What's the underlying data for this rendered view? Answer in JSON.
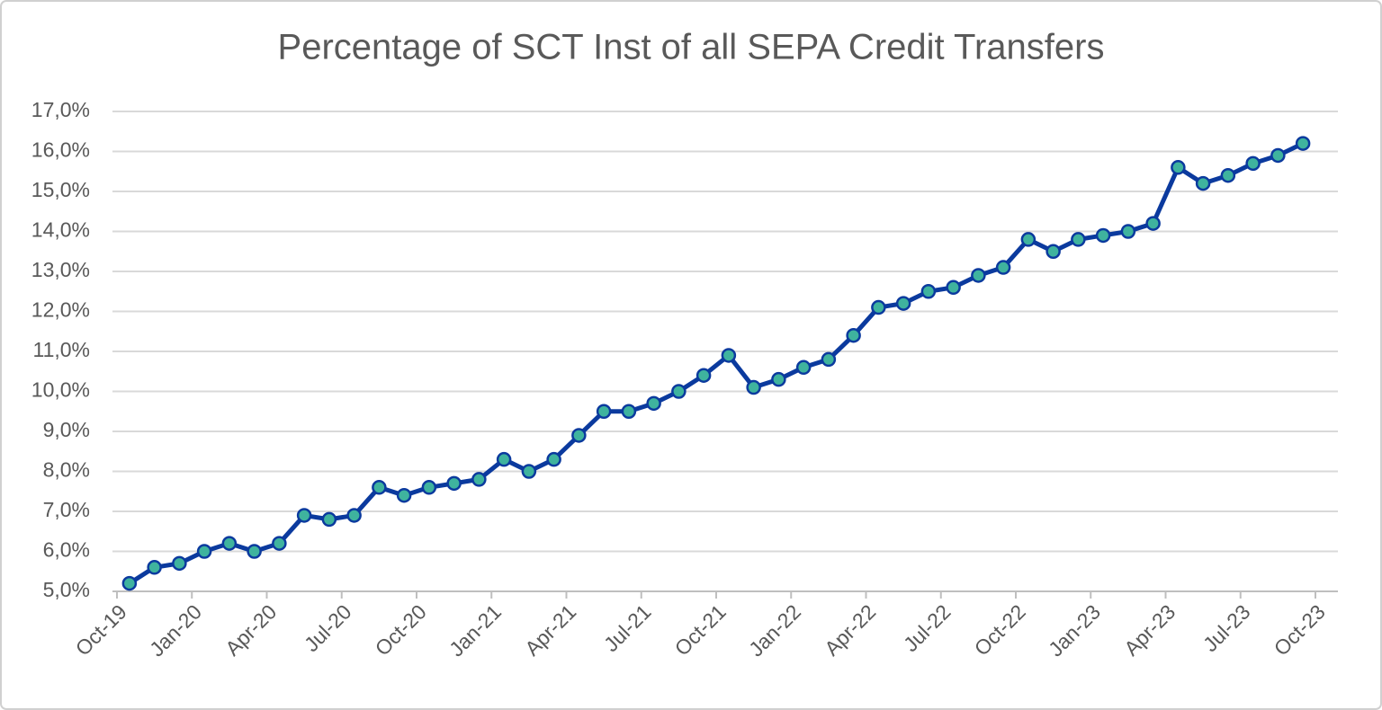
{
  "chart_data": {
    "type": "line",
    "title": "Percentage of SCT Inst of all SEPA Credit Transfers",
    "x": [
      "2019-10",
      "2019-11",
      "2019-12",
      "2020-01",
      "2020-02",
      "2020-03",
      "2020-04",
      "2020-05",
      "2020-06",
      "2020-07",
      "2020-08",
      "2020-09",
      "2020-10",
      "2020-11",
      "2020-12",
      "2021-01",
      "2021-02",
      "2021-03",
      "2021-04",
      "2021-05",
      "2021-06",
      "2021-07",
      "2021-08",
      "2021-09",
      "2021-10",
      "2021-11",
      "2021-12",
      "2022-01",
      "2022-02",
      "2022-03",
      "2022-04",
      "2022-05",
      "2022-06",
      "2022-07",
      "2022-08",
      "2022-09",
      "2022-10",
      "2022-11",
      "2022-12",
      "2023-01",
      "2023-02",
      "2023-03",
      "2023-04",
      "2023-05",
      "2023-06",
      "2023-07",
      "2023-08",
      "2023-09"
    ],
    "series": [
      {
        "color": "#0b3a9e",
        "marker_color": "#3fb39e",
        "values": [
          5.2,
          5.6,
          5.7,
          6.0,
          6.2,
          6.0,
          6.2,
          6.9,
          6.8,
          6.9,
          7.6,
          7.4,
          7.6,
          7.7,
          7.8,
          8.3,
          8.0,
          8.3,
          8.9,
          9.5,
          9.5,
          9.7,
          10.0,
          10.4,
          10.9,
          10.1,
          10.3,
          10.6,
          10.8,
          11.4,
          12.1,
          12.2,
          12.5,
          12.6,
          12.9,
          13.1,
          13.8,
          13.5,
          13.8,
          13.9,
          14.0,
          14.2,
          15.6,
          15.2,
          15.4,
          15.7,
          15.9,
          16.2
        ]
      }
    ],
    "xlim": [
      "2019-10",
      "2023-10"
    ],
    "xticks": [
      {
        "value": "2019-10",
        "label": "Oct-19"
      },
      {
        "value": "2020-01",
        "label": "Jan-20"
      },
      {
        "value": "2020-04",
        "label": "Apr-20"
      },
      {
        "value": "2020-07",
        "label": "Jul-20"
      },
      {
        "value": "2020-10",
        "label": "Oct-20"
      },
      {
        "value": "2021-01",
        "label": "Jan-21"
      },
      {
        "value": "2021-04",
        "label": "Apr-21"
      },
      {
        "value": "2021-07",
        "label": "Jul-21"
      },
      {
        "value": "2021-10",
        "label": "Oct-21"
      },
      {
        "value": "2022-01",
        "label": "Jan-22"
      },
      {
        "value": "2022-04",
        "label": "Apr-22"
      },
      {
        "value": "2022-07",
        "label": "Jul-22"
      },
      {
        "value": "2022-10",
        "label": "Oct-22"
      },
      {
        "value": "2023-01",
        "label": "Jan-23"
      },
      {
        "value": "2023-04",
        "label": "Apr-23"
      },
      {
        "value": "2023-07",
        "label": "Jul-23"
      },
      {
        "value": "2023-10",
        "label": "Oct-23"
      }
    ],
    "ylim": [
      5,
      17
    ],
    "yticks": [
      {
        "value": 5,
        "label": "5,0%"
      },
      {
        "value": 6,
        "label": "6,0%"
      },
      {
        "value": 7,
        "label": "7,0%"
      },
      {
        "value": 8,
        "label": "8,0%"
      },
      {
        "value": 9,
        "label": "9,0%"
      },
      {
        "value": 10,
        "label": "10,0%"
      },
      {
        "value": 11,
        "label": "11,0%"
      },
      {
        "value": 12,
        "label": "12,0%"
      },
      {
        "value": 13,
        "label": "13,0%"
      },
      {
        "value": 14,
        "label": "14,0%"
      },
      {
        "value": 15,
        "label": "15,0%"
      },
      {
        "value": 16,
        "label": "16,0%"
      },
      {
        "value": 17,
        "label": "17,0%"
      }
    ],
    "grid": true
  }
}
